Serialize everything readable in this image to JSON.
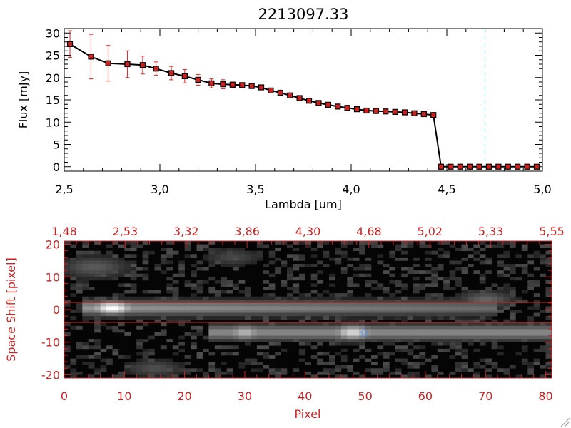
{
  "chart_data": [
    {
      "type": "line",
      "title": "2213097.33",
      "xlabel": "Lambda [um]",
      "ylabel": "Flux [mJy]",
      "xlim": [
        2.5,
        5.0
      ],
      "ylim": [
        -1,
        31
      ],
      "xticks": [
        "2.5",
        "3.0",
        "3.5",
        "4.0",
        "4.5",
        "5.0"
      ],
      "yticks": [
        "0",
        "5",
        "10",
        "15",
        "20",
        "25",
        "30"
      ],
      "series": [
        {
          "name": "flux",
          "x": [
            2.53,
            2.64,
            2.73,
            2.83,
            2.91,
            2.98,
            3.06,
            3.13,
            3.2,
            3.27,
            3.33,
            3.38,
            3.43,
            3.48,
            3.53,
            3.58,
            3.63,
            3.68,
            3.73,
            3.78,
            3.83,
            3.88,
            3.93,
            3.98,
            4.03,
            4.08,
            4.13,
            4.18,
            4.23,
            4.28,
            4.33,
            4.38,
            4.43,
            4.47,
            4.52,
            4.57,
            4.62,
            4.67,
            4.72,
            4.77,
            4.82,
            4.87,
            4.92,
            4.97
          ],
          "y": [
            27.5,
            24.7,
            23.2,
            23.0,
            22.8,
            22.0,
            21.0,
            20.3,
            19.5,
            18.7,
            18.5,
            18.4,
            18.3,
            18.1,
            17.8,
            17.1,
            16.6,
            16.0,
            15.4,
            14.8,
            14.3,
            13.9,
            13.5,
            13.2,
            12.9,
            12.6,
            12.5,
            12.4,
            12.3,
            12.2,
            12.0,
            11.8,
            11.6,
            0.0,
            0.0,
            0.0,
            0.0,
            0.0,
            0.0,
            0.0,
            0.0,
            0.0,
            0.0,
            0.0
          ],
          "yerr": [
            3.0,
            5.0,
            4.0,
            3.0,
            2.0,
            1.5,
            1.5,
            1.5,
            1.2,
            1.0,
            1.0,
            0.6,
            0.5,
            0.4,
            0.4,
            0.3,
            0.3,
            0.3,
            0.3,
            0.3,
            0.3,
            0.3,
            0.3,
            0.3,
            0.3,
            0.3,
            0.3,
            0.3,
            0.3,
            0.3,
            0.3,
            0.3,
            0.3,
            0,
            0,
            0,
            0,
            0,
            0,
            0,
            0,
            0,
            0,
            0
          ],
          "color": "#000000",
          "marker_color": "#cc2222",
          "errorbar_color": "#dd2222"
        }
      ],
      "vline_x": 4.7,
      "vline_color": "#3aa0c0"
    },
    {
      "type": "heatmap",
      "xlabel": "Pixel",
      "ylabel": "Space Shift [pixel]",
      "xlim": [
        0,
        81
      ],
      "ylim": [
        -21,
        21
      ],
      "xticks": [
        "0",
        "10",
        "20",
        "30",
        "40",
        "50",
        "60",
        "70",
        "80"
      ],
      "yticks": [
        "-20",
        "-10",
        "0",
        "10",
        "20"
      ],
      "top_axis_ticks": [
        "1.48",
        "2.53",
        "3.32",
        "3.86",
        "4.30",
        "4.68",
        "5.02",
        "5.33",
        "5.55"
      ],
      "aperture_lines_y": [
        3,
        -3
      ],
      "marker": {
        "x": 49.5,
        "y": -6.5,
        "symbol": "star",
        "color": "#3b8cff"
      },
      "axis_color": "#cc2222"
    }
  ]
}
